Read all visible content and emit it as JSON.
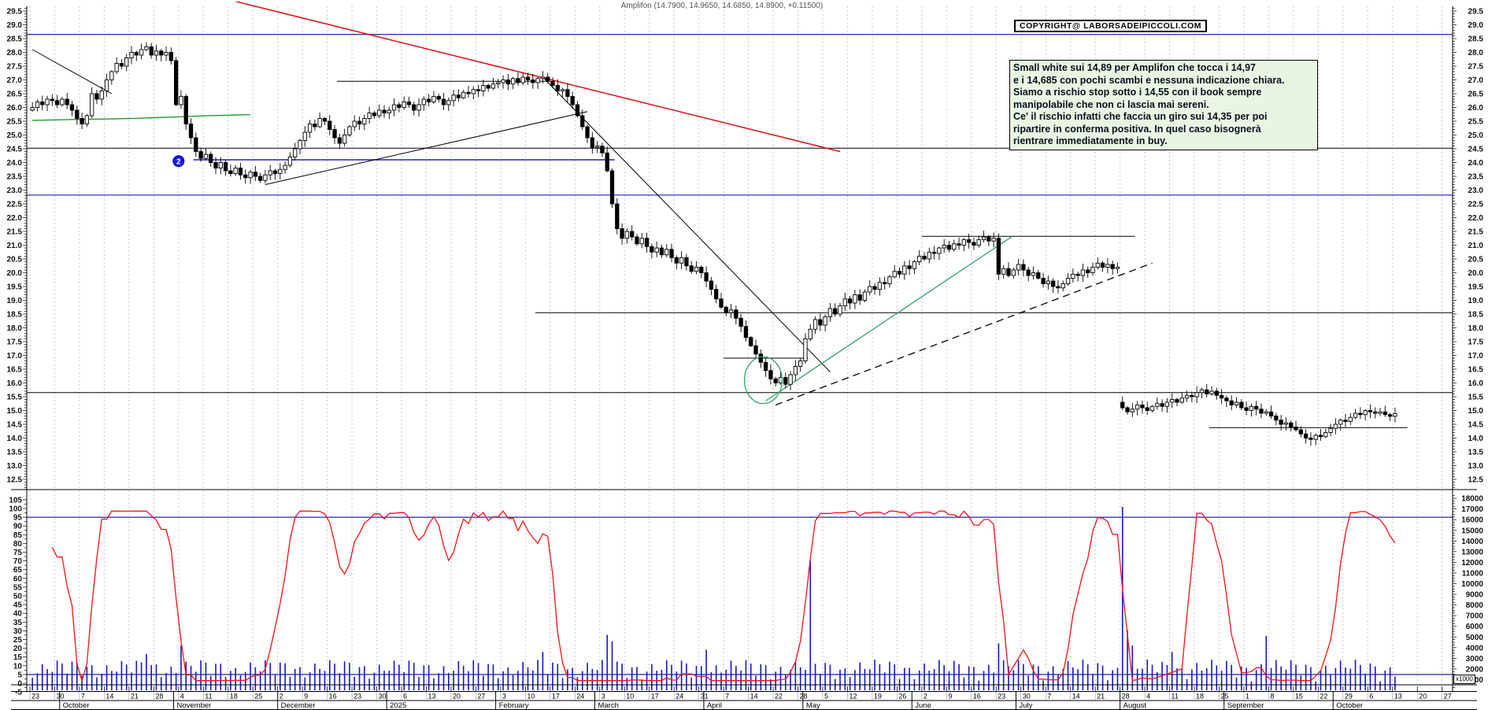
{
  "header": {
    "title": "Amplifon (14.7900, 14.9650, 14.6850, 14.8900, +0.11500)"
  },
  "copyright": {
    "text": "COPYRIGHT@ LABORSADEIPICCOLI.COM"
  },
  "annotation": {
    "lines": [
      "Small white sui 14,89 per Amplifon che tocca i 14,97",
      "e i 14,685 con pochi scambi e nessuna indicazione chiara.",
      "Siamo a rischio stop sotto i 14,55 con il book sempre",
      "manipolabile che non ci lascia mai sereni.",
      "Ce' il rischio infatti che faccia un giro sui 14,35 per poi",
      "ripartire in conferma positiva. In quel caso bisognerà",
      "rientrare immediatamente in buy."
    ]
  },
  "chart_data": {
    "type": "candlestick",
    "instrument": "Amplifon",
    "last_ohlc": {
      "open": 14.79,
      "high": 14.965,
      "low": 14.685,
      "close": 14.89,
      "change": 0.115
    },
    "price_axis": {
      "max_label": 29.5,
      "min_label": 12.5,
      "step": 0.5
    },
    "osc_axis": {
      "max": 105,
      "min": -5,
      "step": 5,
      "upper_band": 95,
      "lower_band": 5
    },
    "volume_axis": {
      "max": 18000,
      "min": 1000,
      "step": 1000,
      "unit_label": "x1000"
    },
    "day_slots": 286,
    "closes": [
      26.0,
      26.2,
      26.1,
      26.3,
      26.25,
      26.1,
      26.3,
      26.1,
      25.9,
      25.6,
      25.4,
      25.7,
      26.5,
      26.3,
      26.6,
      27.0,
      27.3,
      27.6,
      27.5,
      27.8,
      28.0,
      27.9,
      28.1,
      28.2,
      27.9,
      28.05,
      27.9,
      28.0,
      27.7,
      26.1,
      26.4,
      25.4,
      24.9,
      24.4,
      24.15,
      24.3,
      24.0,
      23.8,
      24.0,
      23.7,
      23.6,
      23.8,
      23.55,
      23.45,
      23.65,
      23.5,
      23.35,
      23.55,
      23.7,
      23.6,
      23.75,
      23.9,
      24.2,
      24.5,
      24.8,
      25.1,
      25.4,
      25.3,
      25.6,
      25.5,
      25.2,
      24.9,
      24.7,
      25.0,
      25.3,
      25.5,
      25.4,
      25.6,
      25.8,
      25.7,
      25.9,
      25.8,
      25.9,
      26.1,
      26.0,
      26.2,
      26.1,
      25.9,
      26.1,
      26.3,
      26.2,
      26.4,
      26.3,
      26.1,
      26.25,
      26.45,
      26.35,
      26.55,
      26.5,
      26.65,
      26.6,
      26.8,
      26.7,
      26.85,
      26.9,
      27.0,
      26.85,
      27.05,
      26.9,
      27.1,
      27.0,
      26.9,
      27.05,
      27.1,
      26.95,
      26.8,
      26.6,
      26.65,
      26.4,
      26.1,
      25.7,
      25.3,
      24.9,
      24.55,
      24.6,
      24.35,
      23.7,
      22.5,
      21.6,
      21.25,
      21.5,
      21.3,
      21.05,
      21.25,
      20.95,
      20.75,
      20.9,
      20.65,
      20.85,
      20.55,
      20.35,
      20.55,
      20.25,
      20.05,
      20.2,
      20.0,
      19.7,
      19.4,
      19.05,
      18.75,
      18.55,
      18.65,
      18.35,
      18.05,
      17.65,
      17.35,
      17.05,
      16.75,
      16.45,
      16.15,
      16.0,
      16.2,
      15.95,
      16.3,
      16.6,
      16.8,
      17.6,
      17.95,
      18.3,
      18.1,
      18.4,
      18.7,
      18.5,
      18.8,
      19.05,
      18.9,
      19.2,
      19.0,
      19.3,
      19.5,
      19.4,
      19.65,
      19.6,
      19.85,
      20.05,
      19.95,
      20.25,
      20.15,
      20.4,
      20.6,
      20.5,
      20.75,
      20.7,
      20.9,
      21.0,
      20.85,
      21.05,
      21.0,
      21.2,
      21.1,
      21.0,
      21.2,
      21.3,
      21.15,
      21.25,
      19.95,
      20.15,
      19.9,
      20.1,
      20.3,
      20.1,
      19.9,
      20.0,
      19.8,
      19.6,
      19.7,
      19.5,
      19.45,
      19.6,
      19.8,
      19.95,
      19.9,
      20.1,
      20.0,
      20.2,
      20.35,
      20.2,
      20.3,
      20.15,
      20.2,
      15.1,
      14.95,
      15.05,
      15.2,
      15.1,
      15.0,
      15.15,
      15.25,
      15.15,
      15.3,
      15.4,
      15.3,
      15.45,
      15.55,
      15.5,
      15.65,
      15.75,
      15.6,
      15.7,
      15.55,
      15.45,
      15.35,
      15.2,
      15.3,
      15.1,
      15.0,
      15.15,
      15.05,
      14.9,
      14.95,
      14.8,
      14.65,
      14.5,
      14.55,
      14.4,
      14.3,
      14.15,
      14.0,
      13.95,
      14.1,
      14.05,
      14.2,
      14.35,
      14.5,
      14.65,
      14.6,
      14.75,
      14.9,
      14.85,
      15.0,
      14.95,
      14.9,
      14.95,
      14.85,
      14.79,
      14.89
    ],
    "opens_override": {
      "0": 25.9,
      "220": 15.3
    },
    "week_tick_labels": [
      "23",
      "30",
      "7",
      "14",
      "21",
      "28",
      "4",
      "11",
      "18",
      "25",
      "2",
      "9",
      "16",
      "23",
      "30",
      "6",
      "13",
      "20",
      "27",
      "3",
      "10",
      "17",
      "24",
      "3",
      "10",
      "17",
      "24",
      "31",
      "7",
      "14",
      "22",
      "28",
      "5",
      "12",
      "19",
      "26",
      "2",
      "9",
      "16",
      "23",
      "30",
      "7",
      "14",
      "21",
      "28",
      "4",
      "11",
      "18",
      "25",
      "1",
      "8",
      "15",
      "22",
      "29",
      "6",
      "13",
      "20",
      "27"
    ],
    "months": [
      {
        "label": "October",
        "start": 6
      },
      {
        "label": "November",
        "start": 29
      },
      {
        "label": "December",
        "start": 50
      },
      {
        "label": "2025",
        "start": 72
      },
      {
        "label": "February",
        "start": 94
      },
      {
        "label": "March",
        "start": 114
      },
      {
        "label": "April",
        "start": 136
      },
      {
        "label": "May",
        "start": 156
      },
      {
        "label": "June",
        "start": 178
      },
      {
        "label": "July",
        "start": 199
      },
      {
        "label": "August",
        "start": 220
      },
      {
        "label": "September",
        "start": 241
      },
      {
        "label": "October",
        "start": 263
      }
    ],
    "levels": [
      {
        "price": 28.65,
        "from": 0,
        "to": 286,
        "color": "#2222bb",
        "w": 1.2
      },
      {
        "price": 22.82,
        "from": 0,
        "to": 286,
        "color": "#2222bb",
        "w": 1.2
      },
      {
        "price": 24.1,
        "from": 33,
        "to": 118,
        "color": "#2222bb",
        "w": 1.4
      },
      {
        "price": 24.52,
        "from": 0,
        "to": 286,
        "color": "#000000",
        "w": 1
      },
      {
        "price": 15.65,
        "from": 0,
        "to": 286,
        "color": "#000000",
        "w": 1
      },
      {
        "price": 26.95,
        "from": 62,
        "to": 105,
        "color": "#000000",
        "w": 1
      },
      {
        "price": 18.55,
        "from": 102,
        "to": 286,
        "color": "#000000",
        "w": 1
      },
      {
        "price": 16.9,
        "from": 140,
        "to": 157,
        "color": "#000000",
        "w": 1
      },
      {
        "price": 21.32,
        "from": 180,
        "to": 223,
        "color": "#000000",
        "w": 1
      },
      {
        "price": 14.38,
        "from": 238,
        "to": 278,
        "color": "#000000",
        "w": 1
      }
    ],
    "trendlines": [
      {
        "from": [
          41,
          29.85
        ],
        "to": [
          163,
          24.4
        ],
        "color": "#dd1111",
        "w": 1.5
      },
      {
        "from": [
          0,
          28.1
        ],
        "to": [
          16,
          26.5
        ],
        "color": "#000000",
        "w": 1
      },
      {
        "from": [
          47,
          23.2
        ],
        "to": [
          112,
          25.85
        ],
        "color": "#000000",
        "w": 1
      },
      {
        "from": [
          103,
          27.1
        ],
        "to": [
          161,
          16.4
        ],
        "color": "#000000",
        "w": 1
      },
      {
        "from": [
          148,
          15.35
        ],
        "to": [
          198,
          21.35
        ],
        "color": "#2fa36a",
        "w": 1.3
      },
      {
        "from": [
          150,
          15.2
        ],
        "to": [
          226,
          20.35
        ],
        "color": "#000000",
        "w": 1.3,
        "dash": "9,6"
      }
    ],
    "ma_green": [
      [
        0,
        25.53
      ],
      [
        5,
        25.55
      ],
      [
        10,
        25.57
      ],
      [
        15,
        25.58
      ],
      [
        20,
        25.6
      ],
      [
        25,
        25.63
      ],
      [
        30,
        25.66
      ],
      [
        35,
        25.7
      ],
      [
        40,
        25.72
      ],
      [
        44,
        25.74
      ]
    ],
    "ellipse": {
      "day": 147.5,
      "price": 16.1,
      "rx_days": 3.8,
      "ry_price": 0.85
    },
    "badge": {
      "day": 29.5,
      "price": 24.05,
      "text": "2"
    },
    "oscillator": {
      "kind": "stochastic",
      "period": 14,
      "smooth": 3
    },
    "volume_spikes": {
      "23": 3400,
      "30": 4200,
      "103": 3600,
      "116": 5200,
      "117": 4600,
      "136": 3800,
      "157": 12200,
      "195": 4400,
      "220": 17200,
      "221": 5600,
      "222": 4200,
      "230": 3600,
      "249": 5100
    },
    "colors": {
      "up_candle": "#ffffff",
      "down_candle": "#000000",
      "candle_stroke": "#000000",
      "volume": "#1515cc",
      "oscillator": "#ff1010",
      "band_blue": "#2222bb",
      "trend_red": "#dd1111",
      "trend_green": "#2fa36a",
      "grid": "#c9c9c9",
      "annotation_bg": "#e9f5e2",
      "axis_text": "#111111"
    }
  }
}
